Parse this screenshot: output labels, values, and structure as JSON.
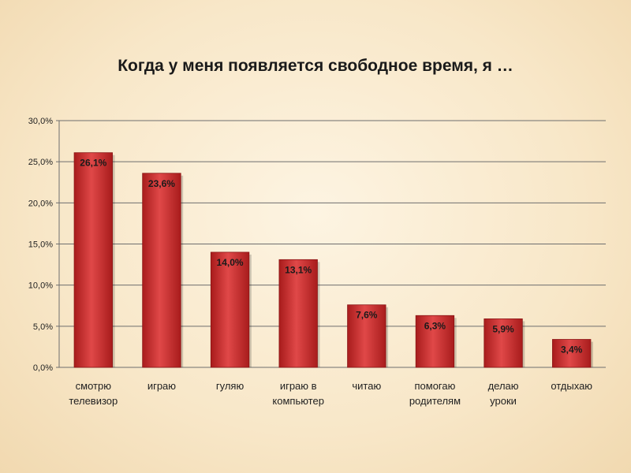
{
  "chart_data": {
    "type": "bar",
    "title": "Когда у меня появляется свободное время, я …",
    "categories": [
      [
        "смотрю",
        "телевизор"
      ],
      [
        "играю"
      ],
      [
        "гуляю"
      ],
      [
        "играю в",
        "компьютер"
      ],
      [
        "читаю"
      ],
      [
        "помогаю",
        "родителям"
      ],
      [
        "делаю",
        "уроки"
      ],
      [
        "отдыхаю"
      ]
    ],
    "values": [
      26.1,
      23.6,
      14.0,
      13.1,
      7.6,
      6.3,
      5.9,
      3.4
    ],
    "data_labels": [
      "26,1%",
      "23,6%",
      "14,0%",
      "13,1%",
      "7,6%",
      "6,3%",
      "5,9%",
      "3,4%"
    ],
    "ylim": [
      0,
      30
    ],
    "yticks": [
      0,
      5,
      10,
      15,
      20,
      25,
      30
    ],
    "ytick_labels": [
      "0,0%",
      "5,0%",
      "10,0%",
      "15,0%",
      "20,0%",
      "25,0%",
      "30,0%"
    ],
    "grid": true,
    "bar_color": "#c92d2d"
  }
}
